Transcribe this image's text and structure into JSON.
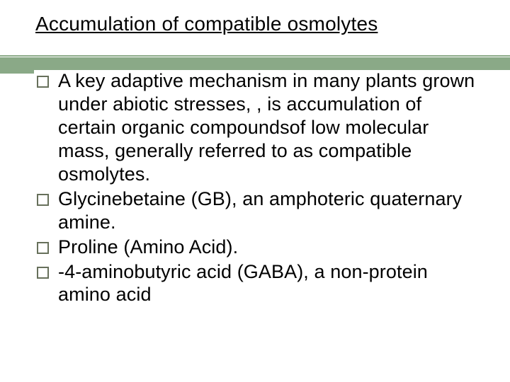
{
  "slide": {
    "title": "Accumulation of compatible osmolytes",
    "title_fontsize": 28,
    "title_color": "#000000",
    "title_underline": true,
    "accent_bar_color": "#8aa987",
    "bullet_border_color": "#67705b",
    "background_color": "#ffffff",
    "body_fontsize": 27,
    "body_color": "#000000",
    "bullets": [
      "A key adaptive mechanism in many plants grown under abiotic stresses, , is accumulation of certain organic compoundsof low molecular mass, generally referred to as compatible osmolytes.",
      "Glycinebetaine (GB), an amphoteric quaternary amine.",
      "Proline (Amino Acid).",
      "-4-aminobutyric acid (GABA), a non-protein amino acid"
    ]
  }
}
